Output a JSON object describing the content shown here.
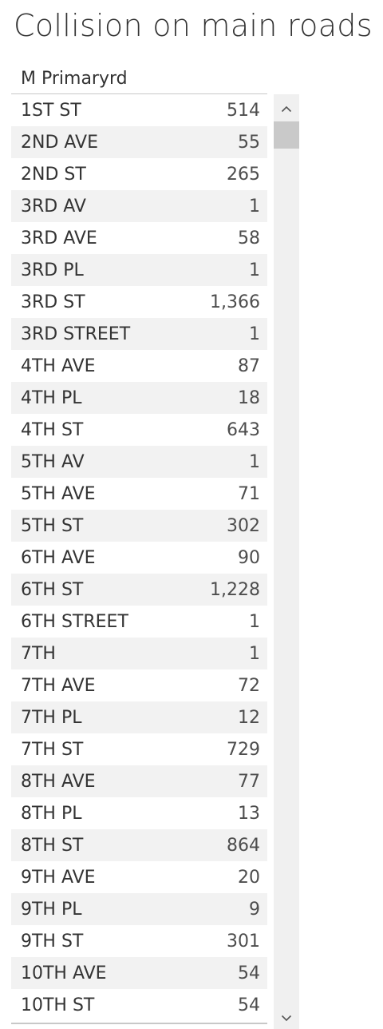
{
  "title": "Collision on main roads",
  "table": {
    "column_header": "M Primaryrd",
    "rows": [
      {
        "name": "1ST ST",
        "value": "514"
      },
      {
        "name": "2ND AVE",
        "value": "55"
      },
      {
        "name": "2ND ST",
        "value": "265"
      },
      {
        "name": "3RD AV",
        "value": "1"
      },
      {
        "name": "3RD AVE",
        "value": "58"
      },
      {
        "name": "3RD PL",
        "value": "1"
      },
      {
        "name": "3RD ST",
        "value": "1,366"
      },
      {
        "name": "3RD STREET",
        "value": "1"
      },
      {
        "name": "4TH AVE",
        "value": "87"
      },
      {
        "name": "4TH PL",
        "value": "18"
      },
      {
        "name": "4TH ST",
        "value": "643"
      },
      {
        "name": "5TH AV",
        "value": "1"
      },
      {
        "name": "5TH AVE",
        "value": "71"
      },
      {
        "name": "5TH ST",
        "value": "302"
      },
      {
        "name": "6TH AVE",
        "value": "90"
      },
      {
        "name": "6TH ST",
        "value": "1,228"
      },
      {
        "name": "6TH STREET",
        "value": "1"
      },
      {
        "name": "7TH",
        "value": "1"
      },
      {
        "name": "7TH AVE",
        "value": "72"
      },
      {
        "name": "7TH PL",
        "value": "12"
      },
      {
        "name": "7TH ST",
        "value": "729"
      },
      {
        "name": "8TH AVE",
        "value": "77"
      },
      {
        "name": "8TH PL",
        "value": "13"
      },
      {
        "name": "8TH ST",
        "value": "864"
      },
      {
        "name": "9TH AVE",
        "value": "20"
      },
      {
        "name": "9TH PL",
        "value": "9"
      },
      {
        "name": "9TH ST",
        "value": "301"
      },
      {
        "name": "10TH AVE",
        "value": "54"
      },
      {
        "name": "10TH ST",
        "value": "54"
      }
    ]
  },
  "scrollbar": {
    "up_icon": "chevron-up-icon",
    "down_icon": "chevron-down-icon",
    "track_color": "#f0f0f0",
    "thumb_color": "#c9c9c9"
  },
  "colors": {
    "text": "#333333",
    "row_alt_background": "#f2f2f2",
    "rule": "#c8c8c8"
  }
}
